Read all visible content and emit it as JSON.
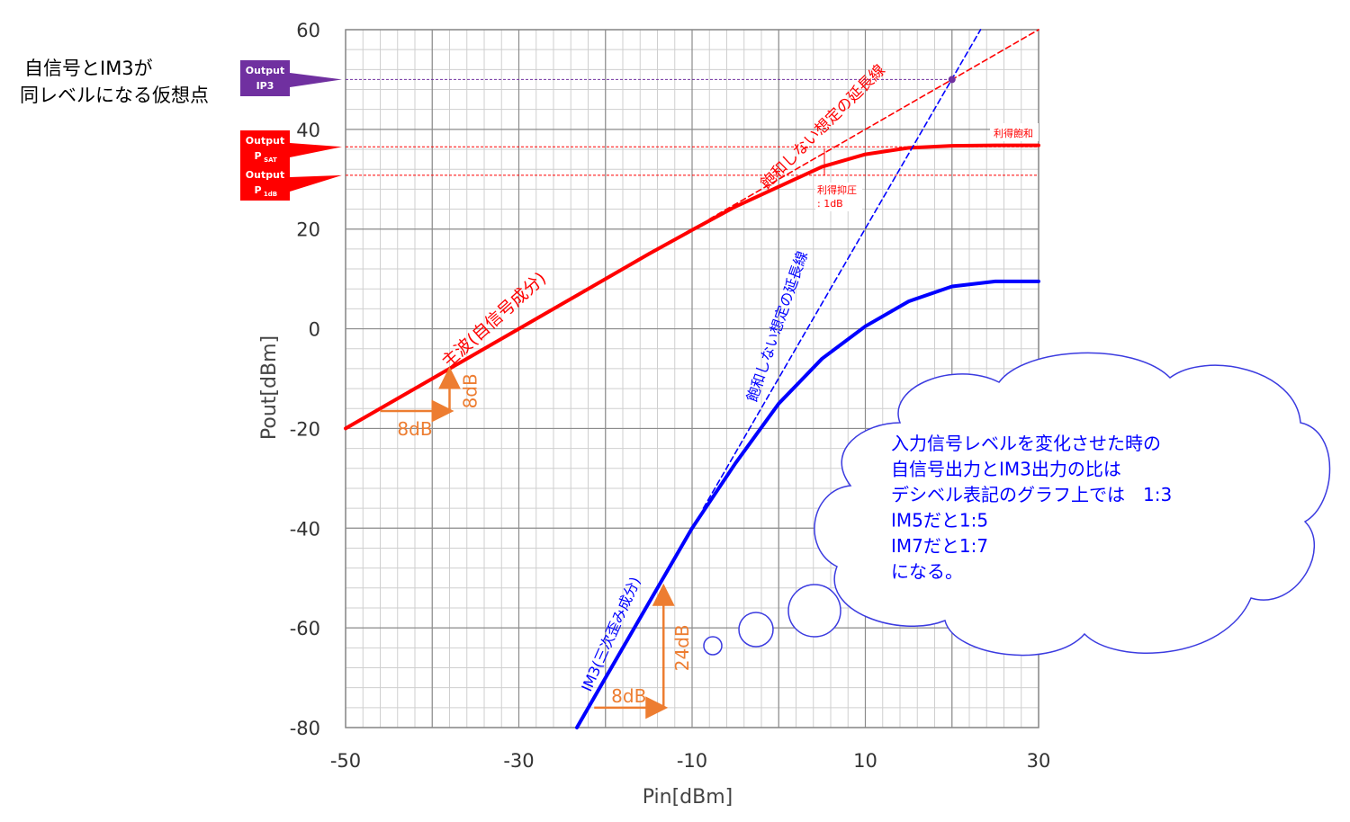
{
  "chart_data": {
    "type": "line",
    "xlabel": "Pin[dBm]",
    "ylabel": "Pout[dBm]",
    "xlim": [
      -50,
      30
    ],
    "ylim": [
      -80,
      60
    ],
    "x_ticks": [
      "-50",
      "-30",
      "-10",
      "10",
      "30"
    ],
    "y_ticks": [
      "60",
      "40",
      "20",
      "0",
      "-20",
      "-40",
      "-60",
      "-80"
    ],
    "grid": true,
    "series": [
      {
        "name": "主波(自信号成分)",
        "color": "#ff0000",
        "x": [
          -50,
          -40,
          -30,
          -20,
          -15,
          -10,
          -5,
          0,
          5,
          10,
          15,
          20,
          25,
          30
        ],
        "y": [
          -20,
          -10,
          0,
          10,
          15,
          19.8,
          24.5,
          28.5,
          32.5,
          35.0,
          36.3,
          36.7,
          36.8,
          36.8
        ]
      },
      {
        "name": "IM3(三次歪み成分)",
        "color": "#0000ff",
        "x": [
          -23.3,
          -20,
          -15,
          -10,
          -5,
          0,
          5,
          10,
          15,
          20,
          25,
          30
        ],
        "y": [
          -80,
          -70,
          -55,
          -40,
          -27,
          -15,
          -6,
          0.5,
          5.5,
          8.5,
          9.5,
          9.5
        ]
      },
      {
        "name": "飽和しない想定の延長線",
        "color": "#ff0000",
        "style": "dashed",
        "x": [
          -8,
          30
        ],
        "y": [
          22,
          60
        ]
      },
      {
        "name": "飽和しない想定の延長線",
        "color": "#0000ff",
        "style": "dashed",
        "x": [
          -8.7,
          23.3
        ],
        "y": [
          -36,
          60
        ]
      }
    ],
    "reference_lines": [
      {
        "label": "Output IP3",
        "y": 50,
        "color": "#7030a0"
      },
      {
        "label": "Output PSAT",
        "y": 36.5,
        "color": "#ff0000"
      },
      {
        "label": "Output P1dB",
        "y": 30.8,
        "color": "#ff0000"
      }
    ],
    "intersection_point": {
      "x": 20,
      "y": 50
    },
    "annotations": {
      "main_wave_label": "主波(自信号成分)",
      "im3_label": "IM3(三次歪み成分)",
      "red_extension_label": "飽和しない想定の延長線",
      "blue_extension_label": "飽和しない想定の延長線",
      "gain_saturation": "利得飽和",
      "gain_compression_1": "利得抑圧",
      "gain_compression_2": ": 1dB",
      "step_main_horizontal": "8dB",
      "step_main_vertical": "8dB",
      "step_im3_horizontal": "8dB",
      "step_im3_vertical": "24dB",
      "ip3_caption_line1": "自信号とIM3が",
      "ip3_caption_line2": "同レベルになる仮想点"
    },
    "tags": {
      "ip3": {
        "line1": "Output",
        "line2": "IP3",
        "color": "#7030a0"
      },
      "psat": {
        "line1": "Output",
        "line2_main": "P",
        "line2_sub": "SAT",
        "color": "#ff0000"
      },
      "p1db": {
        "line1": "Output",
        "line2_main": "P",
        "line2_sub": "1dB",
        "color": "#ff0000"
      }
    },
    "cloud_note": {
      "lines": [
        "入力信号レベルを変化させた時の",
        "自信号出力とIM3出力の比は",
        "デシベル表記のグラフ上では　1:3",
        "IM5だと1:5",
        "IM7だと1:7",
        "になる。"
      ],
      "text_color": "#0000ff"
    }
  }
}
